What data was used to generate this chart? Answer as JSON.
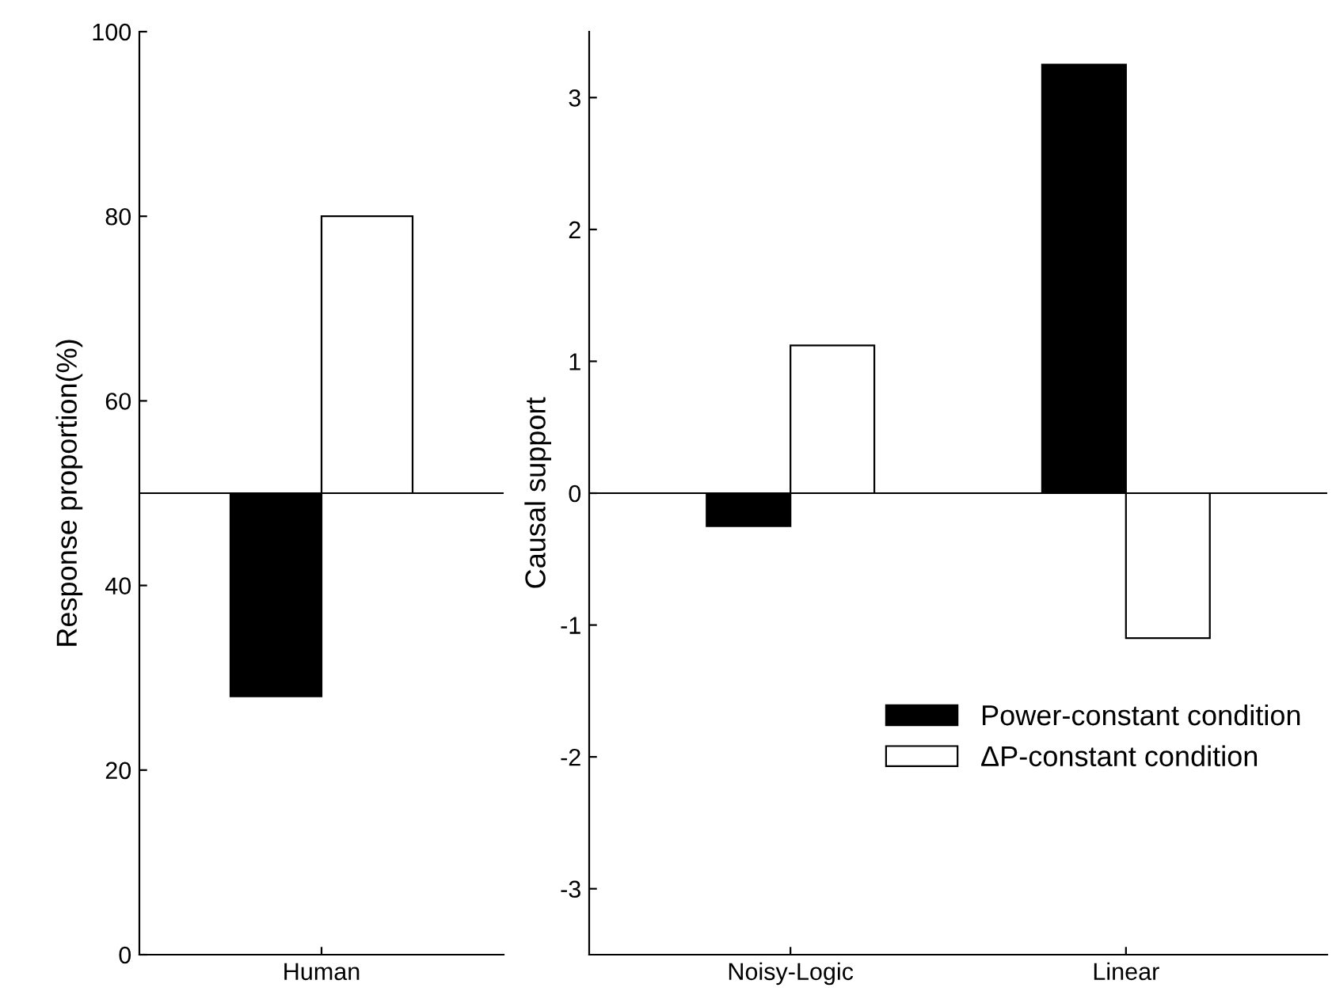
{
  "chart_data": [
    {
      "type": "bar",
      "categories": [
        "Human"
      ],
      "ylabel": "Response proportion(%)",
      "ylim": [
        0,
        100
      ],
      "yticks": [
        0,
        20,
        40,
        60,
        80,
        100
      ],
      "series": [
        {
          "color": "#000000",
          "values": [
            -22
          ],
          "base": [
            50
          ]
        },
        {
          "color": "#ffffff",
          "values": [
            30
          ],
          "base": [
            50
          ]
        }
      ],
      "ref_lines": [
        {
          "axis": "y",
          "value": 50,
          "color": "#000000"
        }
      ],
      "grid": false,
      "legend": false
    },
    {
      "type": "bar",
      "categories": [
        "Noisy-Logic",
        "Linear"
      ],
      "ylabel": "Causal support",
      "ylim": [
        -3.5,
        3.5
      ],
      "yticks": [
        {
          "value": -3,
          "label": "-3"
        },
        {
          "value": -2,
          "label": "-2"
        },
        {
          "value": -1,
          "label": "-1"
        },
        0,
        1,
        2,
        3
      ],
      "series": [
        {
          "name": "Power-constant condition",
          "color": "#000000",
          "values": [
            -0.25,
            3.25
          ]
        },
        {
          "name": "ΔP-constant condition",
          "color": "#ffffff",
          "values": [
            1.12,
            -1.1
          ]
        }
      ],
      "ref_lines": [
        {
          "axis": "y",
          "value": 0,
          "color": "#000000"
        }
      ],
      "grid": false,
      "legend": "bottom right"
    }
  ]
}
